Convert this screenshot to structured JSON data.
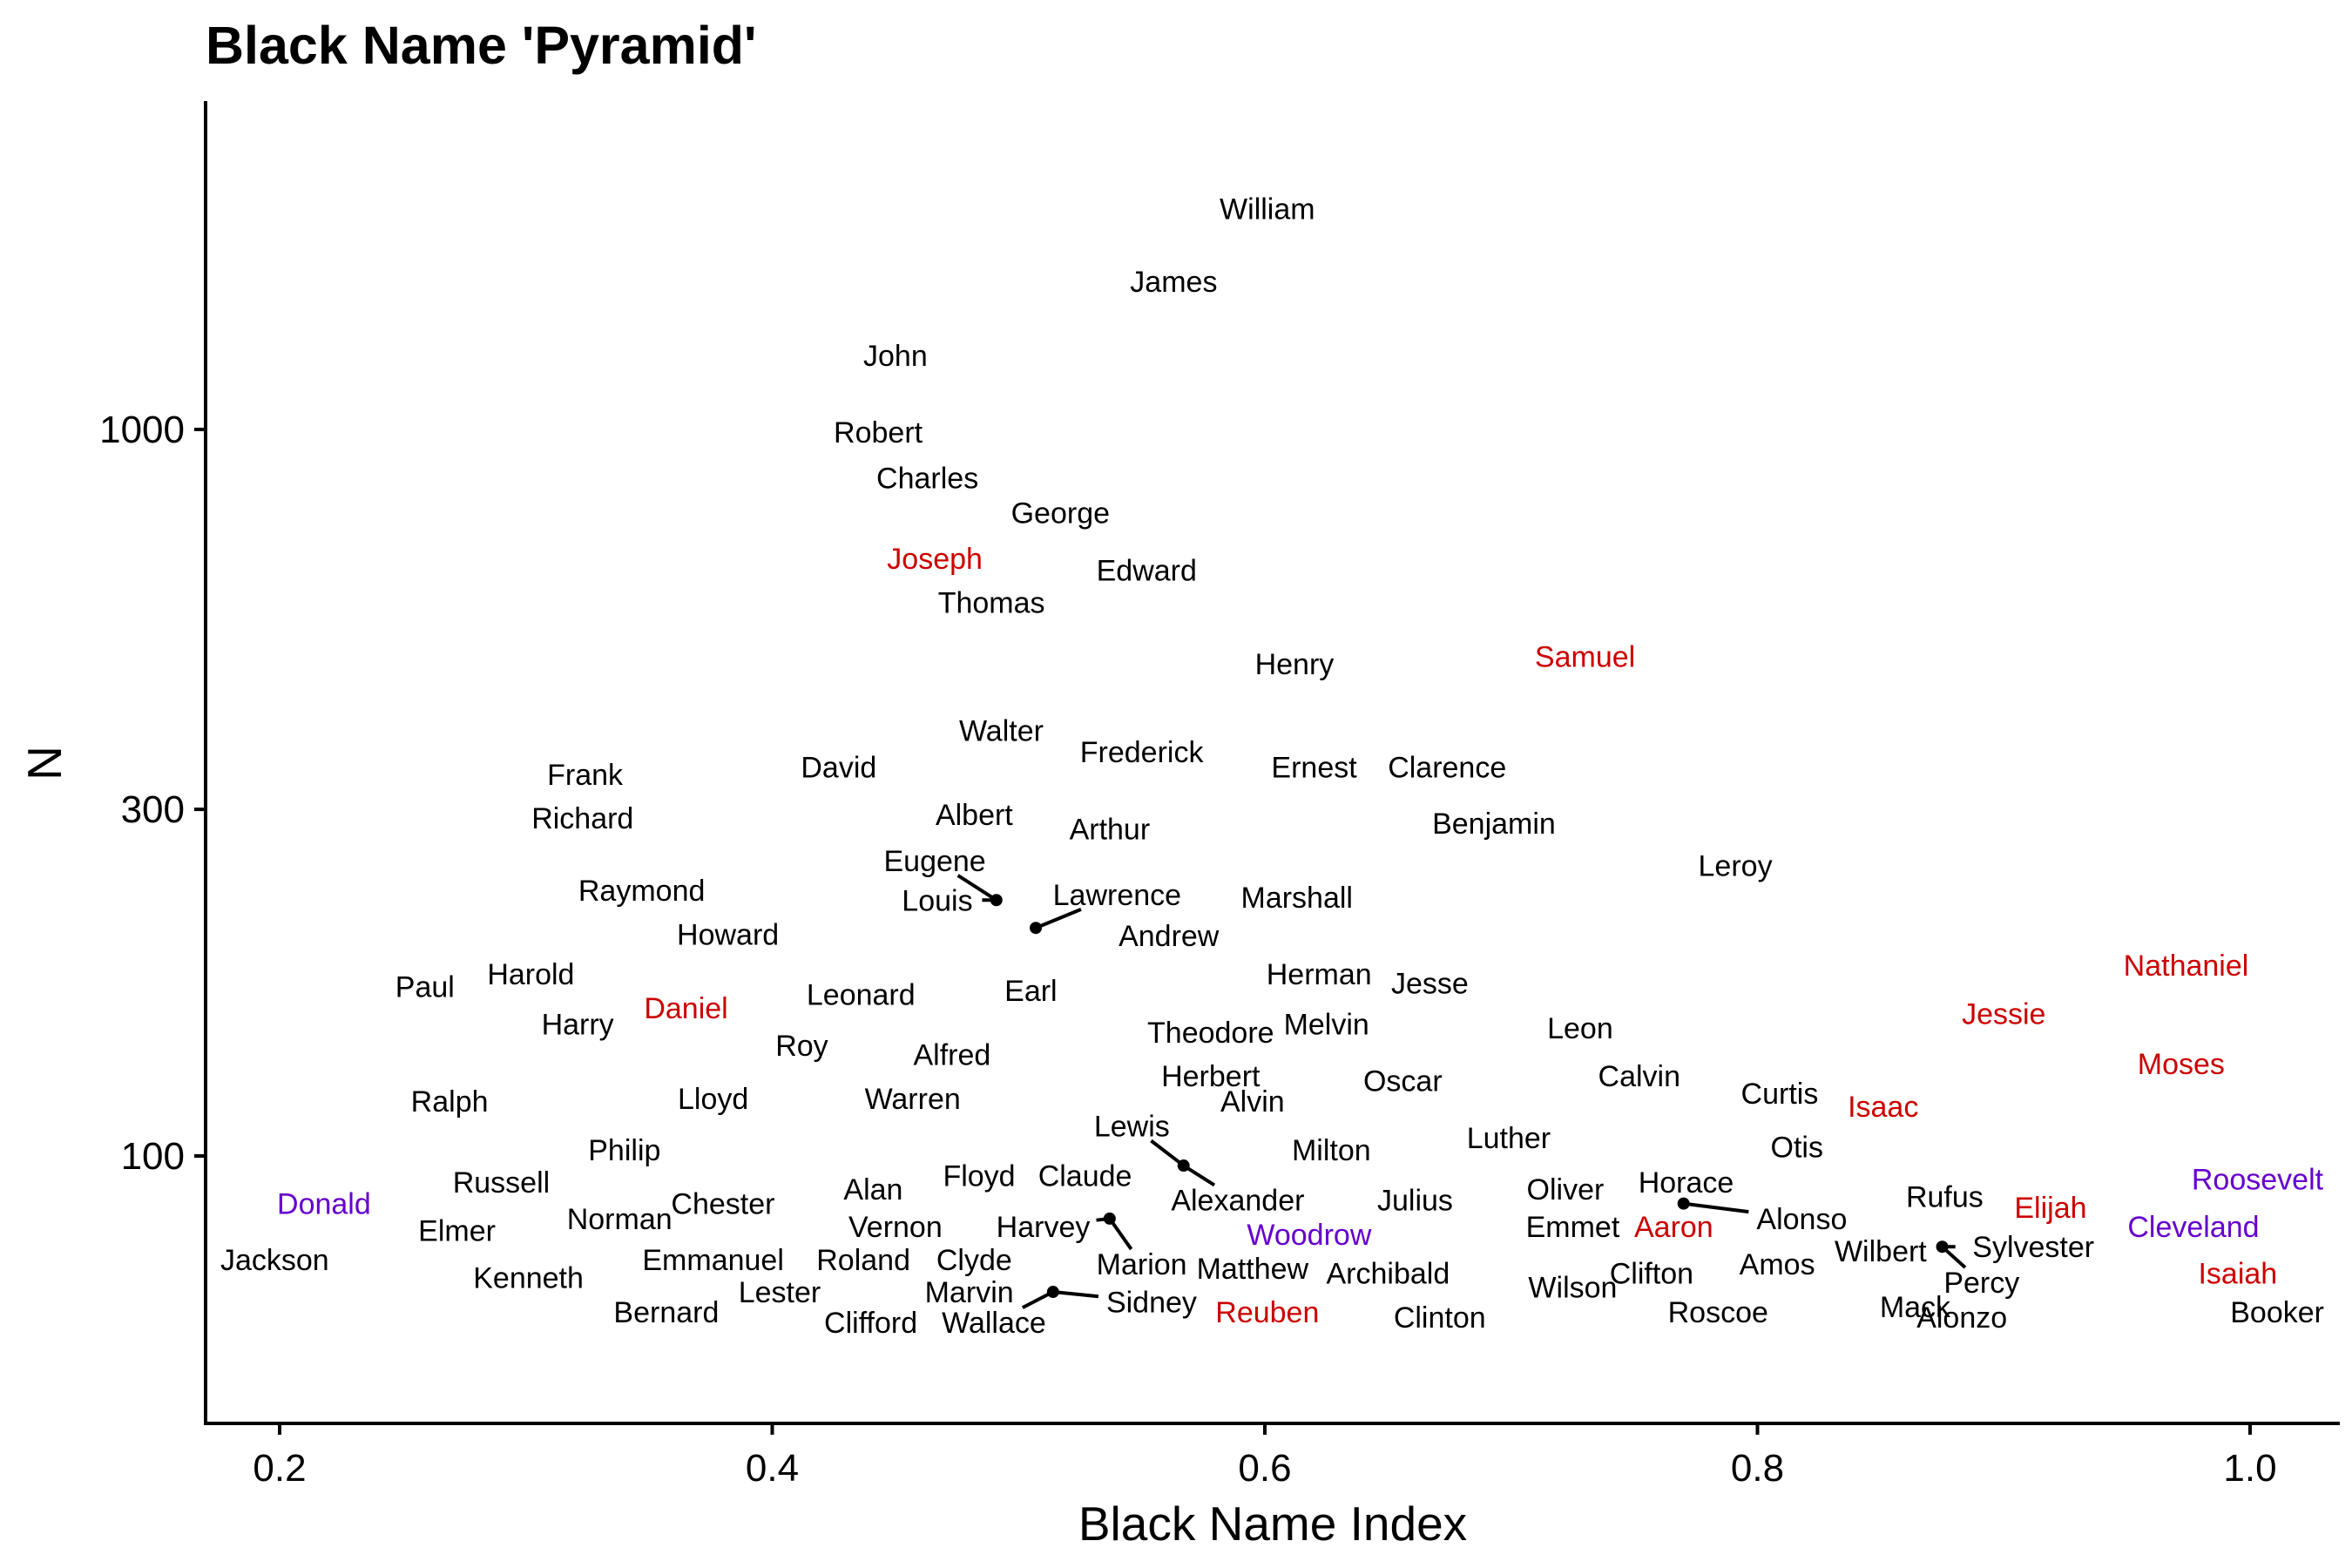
{
  "chart_data": {
    "type": "scatter",
    "title": "Black Name 'Pyramid'",
    "xlabel": "Black Name Index",
    "ylabel": "N",
    "x_scale": "linear",
    "y_scale": "log",
    "xlim": [
      0.17,
      1.02
    ],
    "ylim": [
      48,
      2450
    ],
    "x_ticks": [
      0.2,
      0.4,
      0.6,
      0.8,
      1.0
    ],
    "x_tick_labels": [
      "0.2",
      "0.4",
      "0.6",
      "0.8",
      "1.0"
    ],
    "y_ticks": [
      100,
      300,
      1000
    ],
    "y_tick_labels": [
      "100",
      "300",
      "1000"
    ],
    "grid": false,
    "legend": "none",
    "colors": {
      "default": "#000000",
      "red": "#cc0000",
      "purple": "#6600cc"
    },
    "points": [
      {
        "name": "William",
        "x": 0.601,
        "y": 2013,
        "color": "default"
      },
      {
        "name": "James",
        "x": 0.563,
        "y": 1600,
        "color": "default"
      },
      {
        "name": "John",
        "x": 0.45,
        "y": 1265,
        "color": "default"
      },
      {
        "name": "Robert",
        "x": 0.443,
        "y": 992,
        "color": "default"
      },
      {
        "name": "Charles",
        "x": 0.463,
        "y": 858,
        "color": "default"
      },
      {
        "name": "George",
        "x": 0.517,
        "y": 768,
        "color": "default"
      },
      {
        "name": "Joseph",
        "x": 0.466,
        "y": 665,
        "color": "red"
      },
      {
        "name": "Edward",
        "x": 0.552,
        "y": 640,
        "color": "default"
      },
      {
        "name": "Thomas",
        "x": 0.489,
        "y": 578,
        "color": "default"
      },
      {
        "name": "Henry",
        "x": 0.612,
        "y": 476,
        "color": "default"
      },
      {
        "name": "Samuel",
        "x": 0.73,
        "y": 487,
        "color": "red"
      },
      {
        "name": "Walter",
        "x": 0.493,
        "y": 385,
        "color": "default"
      },
      {
        "name": "Frederick",
        "x": 0.55,
        "y": 360,
        "color": "default"
      },
      {
        "name": "David",
        "x": 0.427,
        "y": 343,
        "color": "default"
      },
      {
        "name": "Ernest",
        "x": 0.62,
        "y": 343,
        "color": "default"
      },
      {
        "name": "Clarence",
        "x": 0.674,
        "y": 343,
        "color": "default"
      },
      {
        "name": "Frank",
        "x": 0.324,
        "y": 335,
        "color": "default"
      },
      {
        "name": "Richard",
        "x": 0.323,
        "y": 292,
        "color": "default"
      },
      {
        "name": "Albert",
        "x": 0.482,
        "y": 295,
        "color": "default"
      },
      {
        "name": "Arthur",
        "x": 0.537,
        "y": 282,
        "color": "default"
      },
      {
        "name": "Benjamin",
        "x": 0.693,
        "y": 287,
        "color": "default"
      },
      {
        "name": "Eugene",
        "x": 0.491,
        "y": 225,
        "color": "default",
        "label_x": 0.466,
        "label_y": 255
      },
      {
        "name": "Leroy",
        "x": 0.791,
        "y": 251,
        "color": "default"
      },
      {
        "name": "Raymond",
        "x": 0.347,
        "y": 232,
        "color": "default"
      },
      {
        "name": "Louis",
        "x": 0.491,
        "y": 225,
        "color": "default",
        "label_x": 0.467,
        "label_y": 225
      },
      {
        "name": "Lawrence",
        "x": 0.507,
        "y": 206,
        "color": "default",
        "label_x": 0.54,
        "label_y": 229
      },
      {
        "name": "Marshall",
        "x": 0.613,
        "y": 227,
        "color": "default"
      },
      {
        "name": "Howard",
        "x": 0.382,
        "y": 202,
        "color": "default"
      },
      {
        "name": "Andrew",
        "x": 0.561,
        "y": 201,
        "color": "default"
      },
      {
        "name": "Nathaniel",
        "x": 0.974,
        "y": 183,
        "color": "red"
      },
      {
        "name": "Harold",
        "x": 0.302,
        "y": 178,
        "color": "default"
      },
      {
        "name": "Herman",
        "x": 0.622,
        "y": 178,
        "color": "default"
      },
      {
        "name": "Paul",
        "x": 0.259,
        "y": 171,
        "color": "default"
      },
      {
        "name": "Jesse",
        "x": 0.667,
        "y": 173,
        "color": "default"
      },
      {
        "name": "Leonard",
        "x": 0.436,
        "y": 167,
        "color": "default"
      },
      {
        "name": "Earl",
        "x": 0.505,
        "y": 169,
        "color": "default"
      },
      {
        "name": "Daniel",
        "x": 0.365,
        "y": 160,
        "color": "red"
      },
      {
        "name": "Jessie",
        "x": 0.9,
        "y": 157,
        "color": "red"
      },
      {
        "name": "Harry",
        "x": 0.321,
        "y": 152,
        "color": "default"
      },
      {
        "name": "Melvin",
        "x": 0.625,
        "y": 152,
        "color": "default"
      },
      {
        "name": "Leon",
        "x": 0.728,
        "y": 150,
        "color": "default"
      },
      {
        "name": "Theodore",
        "x": 0.578,
        "y": 148,
        "color": "default"
      },
      {
        "name": "Roy",
        "x": 0.412,
        "y": 142,
        "color": "default"
      },
      {
        "name": "Alfred",
        "x": 0.473,
        "y": 138,
        "color": "default"
      },
      {
        "name": "Moses",
        "x": 0.972,
        "y": 134,
        "color": "red"
      },
      {
        "name": "Herbert",
        "x": 0.578,
        "y": 129,
        "color": "default"
      },
      {
        "name": "Oscar",
        "x": 0.656,
        "y": 127,
        "color": "default"
      },
      {
        "name": "Calvin",
        "x": 0.752,
        "y": 129,
        "color": "default"
      },
      {
        "name": "Curtis",
        "x": 0.809,
        "y": 122,
        "color": "default"
      },
      {
        "name": "Ralph",
        "x": 0.269,
        "y": 119,
        "color": "default"
      },
      {
        "name": "Lloyd",
        "x": 0.376,
        "y": 120,
        "color": "default"
      },
      {
        "name": "Warren",
        "x": 0.457,
        "y": 120,
        "color": "default"
      },
      {
        "name": "Alvin",
        "x": 0.595,
        "y": 119,
        "color": "default"
      },
      {
        "name": "Isaac",
        "x": 0.851,
        "y": 117,
        "color": "red"
      },
      {
        "name": "Lewis",
        "x": 0.567,
        "y": 97,
        "color": "default",
        "label_x": 0.546,
        "label_y": 110
      },
      {
        "name": "Milton",
        "x": 0.627,
        "y": 102,
        "color": "default"
      },
      {
        "name": "Luther",
        "x": 0.699,
        "y": 106,
        "color": "default"
      },
      {
        "name": "Otis",
        "x": 0.816,
        "y": 103,
        "color": "default"
      },
      {
        "name": "Philip",
        "x": 0.34,
        "y": 102,
        "color": "default"
      },
      {
        "name": "Russell",
        "x": 0.29,
        "y": 92,
        "color": "default"
      },
      {
        "name": "Roosevelt",
        "x": 1.003,
        "y": 93,
        "color": "purple"
      },
      {
        "name": "Floyd",
        "x": 0.484,
        "y": 94,
        "color": "default"
      },
      {
        "name": "Claude",
        "x": 0.527,
        "y": 94,
        "color": "default"
      },
      {
        "name": "Horace",
        "x": 0.771,
        "y": 92,
        "color": "default"
      },
      {
        "name": "Alan",
        "x": 0.441,
        "y": 90,
        "color": "default"
      },
      {
        "name": "Oliver",
        "x": 0.722,
        "y": 90,
        "color": "default"
      },
      {
        "name": "Donald",
        "x": 0.218,
        "y": 86,
        "color": "purple"
      },
      {
        "name": "Chester",
        "x": 0.38,
        "y": 86,
        "color": "default"
      },
      {
        "name": "Alexander",
        "x": 0.567,
        "y": 97,
        "color": "default",
        "label_x": 0.589,
        "label_y": 87
      },
      {
        "name": "Julius",
        "x": 0.661,
        "y": 87,
        "color": "default"
      },
      {
        "name": "Rufus",
        "x": 0.876,
        "y": 88,
        "color": "default"
      },
      {
        "name": "Elijah",
        "x": 0.919,
        "y": 85,
        "color": "red"
      },
      {
        "name": "Alonso",
        "x": 0.77,
        "y": 86,
        "color": "default",
        "label_x": 0.818,
        "label_y": 82
      },
      {
        "name": "Norman",
        "x": 0.338,
        "y": 82,
        "color": "default"
      },
      {
        "name": "Elmer",
        "x": 0.272,
        "y": 79,
        "color": "default"
      },
      {
        "name": "Vernon",
        "x": 0.45,
        "y": 80,
        "color": "default"
      },
      {
        "name": "Harvey",
        "x": 0.537,
        "y": 82,
        "color": "default",
        "label_x": 0.51,
        "label_y": 80
      },
      {
        "name": "Emmet",
        "x": 0.725,
        "y": 80,
        "color": "default"
      },
      {
        "name": "Aaron",
        "x": 0.766,
        "y": 80,
        "color": "red"
      },
      {
        "name": "Cleveland",
        "x": 0.977,
        "y": 80,
        "color": "purple"
      },
      {
        "name": "Woodrow",
        "x": 0.618,
        "y": 78,
        "color": "purple"
      },
      {
        "name": "Sylvester",
        "x": 0.875,
        "y": 75,
        "color": "default",
        "label_x": 0.912,
        "label_y": 75
      },
      {
        "name": "Wilbert",
        "x": 0.875,
        "y": 75,
        "color": "default",
        "label_x": 0.85,
        "label_y": 74
      },
      {
        "name": "Jackson",
        "x": 0.198,
        "y": 72,
        "color": "default"
      },
      {
        "name": "Emmanuel",
        "x": 0.376,
        "y": 72,
        "color": "default"
      },
      {
        "name": "Roland",
        "x": 0.437,
        "y": 72,
        "color": "default"
      },
      {
        "name": "Clyde",
        "x": 0.482,
        "y": 72,
        "color": "default"
      },
      {
        "name": "Marion",
        "x": 0.537,
        "y": 82,
        "color": "default",
        "label_x": 0.55,
        "label_y": 71
      },
      {
        "name": "Amos",
        "x": 0.808,
        "y": 71,
        "color": "default"
      },
      {
        "name": "Matthew",
        "x": 0.595,
        "y": 70,
        "color": "default"
      },
      {
        "name": "Archibald",
        "x": 0.65,
        "y": 69,
        "color": "default"
      },
      {
        "name": "Clifton",
        "x": 0.757,
        "y": 69,
        "color": "default"
      },
      {
        "name": "Isaiah",
        "x": 0.995,
        "y": 69,
        "color": "red"
      },
      {
        "name": "Kenneth",
        "x": 0.301,
        "y": 68,
        "color": "default"
      },
      {
        "name": "Percy",
        "x": 0.875,
        "y": 75,
        "color": "default",
        "label_x": 0.891,
        "label_y": 67
      },
      {
        "name": "Wilson",
        "x": 0.725,
        "y": 66,
        "color": "default"
      },
      {
        "name": "Lester",
        "x": 0.403,
        "y": 65,
        "color": "default"
      },
      {
        "name": "Marvin",
        "x": 0.48,
        "y": 65,
        "color": "default"
      },
      {
        "name": "Sidney",
        "x": 0.514,
        "y": 65,
        "color": "default",
        "label_x": 0.554,
        "label_y": 63
      },
      {
        "name": "Mack",
        "x": 0.864,
        "y": 62,
        "color": "default"
      },
      {
        "name": "Booker",
        "x": 1.011,
        "y": 61,
        "color": "default"
      },
      {
        "name": "Bernard",
        "x": 0.357,
        "y": 61,
        "color": "default"
      },
      {
        "name": "Reuben",
        "x": 0.601,
        "y": 61,
        "color": "red"
      },
      {
        "name": "Roscoe",
        "x": 0.784,
        "y": 61,
        "color": "default"
      },
      {
        "name": "Clifford",
        "x": 0.44,
        "y": 59,
        "color": "default"
      },
      {
        "name": "Wallace",
        "x": 0.514,
        "y": 65,
        "color": "default",
        "label_x": 0.49,
        "label_y": 59
      },
      {
        "name": "Clinton",
        "x": 0.671,
        "y": 60,
        "color": "default"
      },
      {
        "name": "Alonzo",
        "x": 0.883,
        "y": 60,
        "color": "default"
      }
    ]
  }
}
